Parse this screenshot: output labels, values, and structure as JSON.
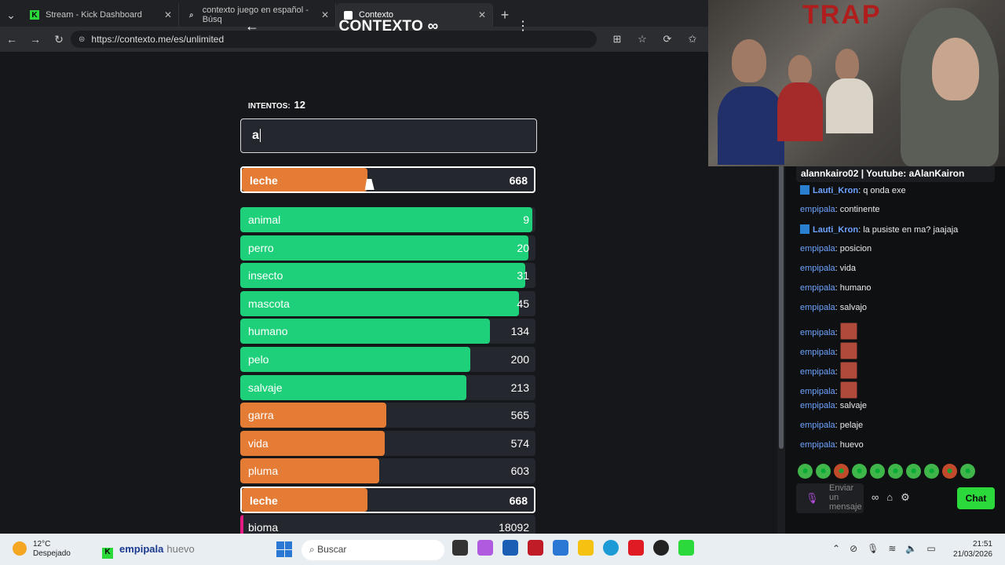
{
  "browser": {
    "tabs": [
      {
        "label": "Stream - Kick Dashboard",
        "icon": "kick-icon"
      },
      {
        "label": "contexto juego en español - Búsq",
        "icon": "search-icon"
      },
      {
        "label": "Contexto",
        "icon": "contexto-icon",
        "active": true
      }
    ],
    "url": "https://contexto.me/es/unlimited"
  },
  "game": {
    "title": "CONTEXTO",
    "attempts_label": "INTENTOS:",
    "attempts_value": "12",
    "input_value": "a",
    "last_guess": {
      "word": "leche",
      "rank": "668",
      "color": "#e57c36",
      "fill": 0.43
    },
    "guesses": [
      {
        "word": "animal",
        "rank": "9",
        "color": "#1ed07a",
        "fill": 0.99
      },
      {
        "word": "perro",
        "rank": "20",
        "color": "#1ed07a",
        "fill": 0.975
      },
      {
        "word": "insecto",
        "rank": "31",
        "color": "#1ed07a",
        "fill": 0.965
      },
      {
        "word": "mascota",
        "rank": "45",
        "color": "#1ed07a",
        "fill": 0.945
      },
      {
        "word": "humano",
        "rank": "134",
        "color": "#1ed07a",
        "fill": 0.845
      },
      {
        "word": "pelo",
        "rank": "200",
        "color": "#1ed07a",
        "fill": 0.78
      },
      {
        "word": "salvaje",
        "rank": "213",
        "color": "#1ed07a",
        "fill": 0.765
      },
      {
        "word": "garra",
        "rank": "565",
        "color": "#e57c36",
        "fill": 0.495
      },
      {
        "word": "vida",
        "rank": "574",
        "color": "#e57c36",
        "fill": 0.49
      },
      {
        "word": "pluma",
        "rank": "603",
        "color": "#e57c36",
        "fill": 0.47
      },
      {
        "word": "leche",
        "rank": "668",
        "color": "#e57c36",
        "fill": 0.43,
        "highlight": true
      },
      {
        "word": "bioma",
        "rank": "18092",
        "color": "#e41b83",
        "fill": 0.01
      }
    ]
  },
  "stream": {
    "header": "alannkairo02 | Youtube: aAlanKairon",
    "messages": [
      {
        "user": "Lauti_Kron",
        "text": "q onda exe",
        "badge": true
      },
      {
        "user": "empipala",
        "text": "continente"
      },
      {
        "user": "Lauti_Kron",
        "text": "la pusiste en ma? jaajaja",
        "badge": true
      },
      {
        "user": "empipala",
        "text": "posicion"
      },
      {
        "user": "empipala",
        "text": "vida"
      },
      {
        "user": "empipala",
        "text": "humano"
      },
      {
        "user": "empipala",
        "text": "salvajo"
      },
      {
        "user": "empipala",
        "text": "",
        "emote": true
      },
      {
        "user": "empipala",
        "text": "",
        "emote": true
      },
      {
        "user": "empipala",
        "text": "",
        "emote": true
      },
      {
        "user": "empipala",
        "text": "",
        "emote": true
      },
      {
        "user": "empipala",
        "text": "salvaje"
      },
      {
        "user": "empipala",
        "text": "pelaje"
      },
      {
        "user": "empipala",
        "text": "huevo"
      }
    ],
    "send_placeholder": "Enviar un mensaje",
    "chat_button": "Chat",
    "webcam_text": "TRAP"
  },
  "taskbar": {
    "temp": "12°C",
    "weather": "Despejado",
    "app_name": "empipala",
    "app_sub": "huevo",
    "search": "Buscar",
    "time": "21:51",
    "date": "21/03/2026"
  }
}
